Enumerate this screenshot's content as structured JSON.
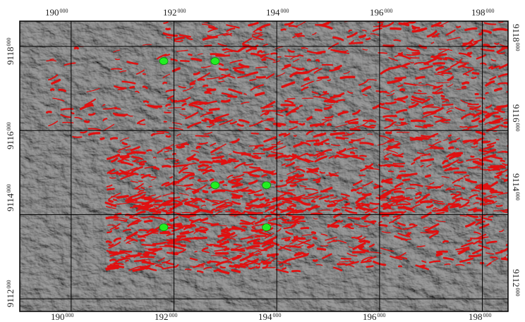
{
  "map": {
    "x_ticks": [
      {
        "main": "190",
        "sup": "000"
      },
      {
        "main": "192",
        "sup": "000"
      },
      {
        "main": "194",
        "sup": "000"
      },
      {
        "main": "196",
        "sup": "000"
      },
      {
        "main": "198",
        "sup": "000"
      }
    ],
    "y_ticks": [
      {
        "main": "9118",
        "sup": "000"
      },
      {
        "main": "9116",
        "sup": "000"
      },
      {
        "main": "9114",
        "sup": "000"
      },
      {
        "main": "9112",
        "sup": "000"
      }
    ],
    "x_range": [
      189000,
      198500
    ],
    "y_range": [
      9111700,
      9118600
    ],
    "wells": [
      {
        "x": 191800,
        "y": 9117650
      },
      {
        "x": 192800,
        "y": 9117650
      },
      {
        "x": 192800,
        "y": 9114700
      },
      {
        "x": 193800,
        "y": 9114700
      },
      {
        "x": 191800,
        "y": 9113700
      },
      {
        "x": 193800,
        "y": 9113700
      }
    ],
    "colors": {
      "background": "#8a8a8a",
      "lineaments": "#e01010",
      "wells": "#22ee22",
      "grid": "#000000"
    }
  }
}
